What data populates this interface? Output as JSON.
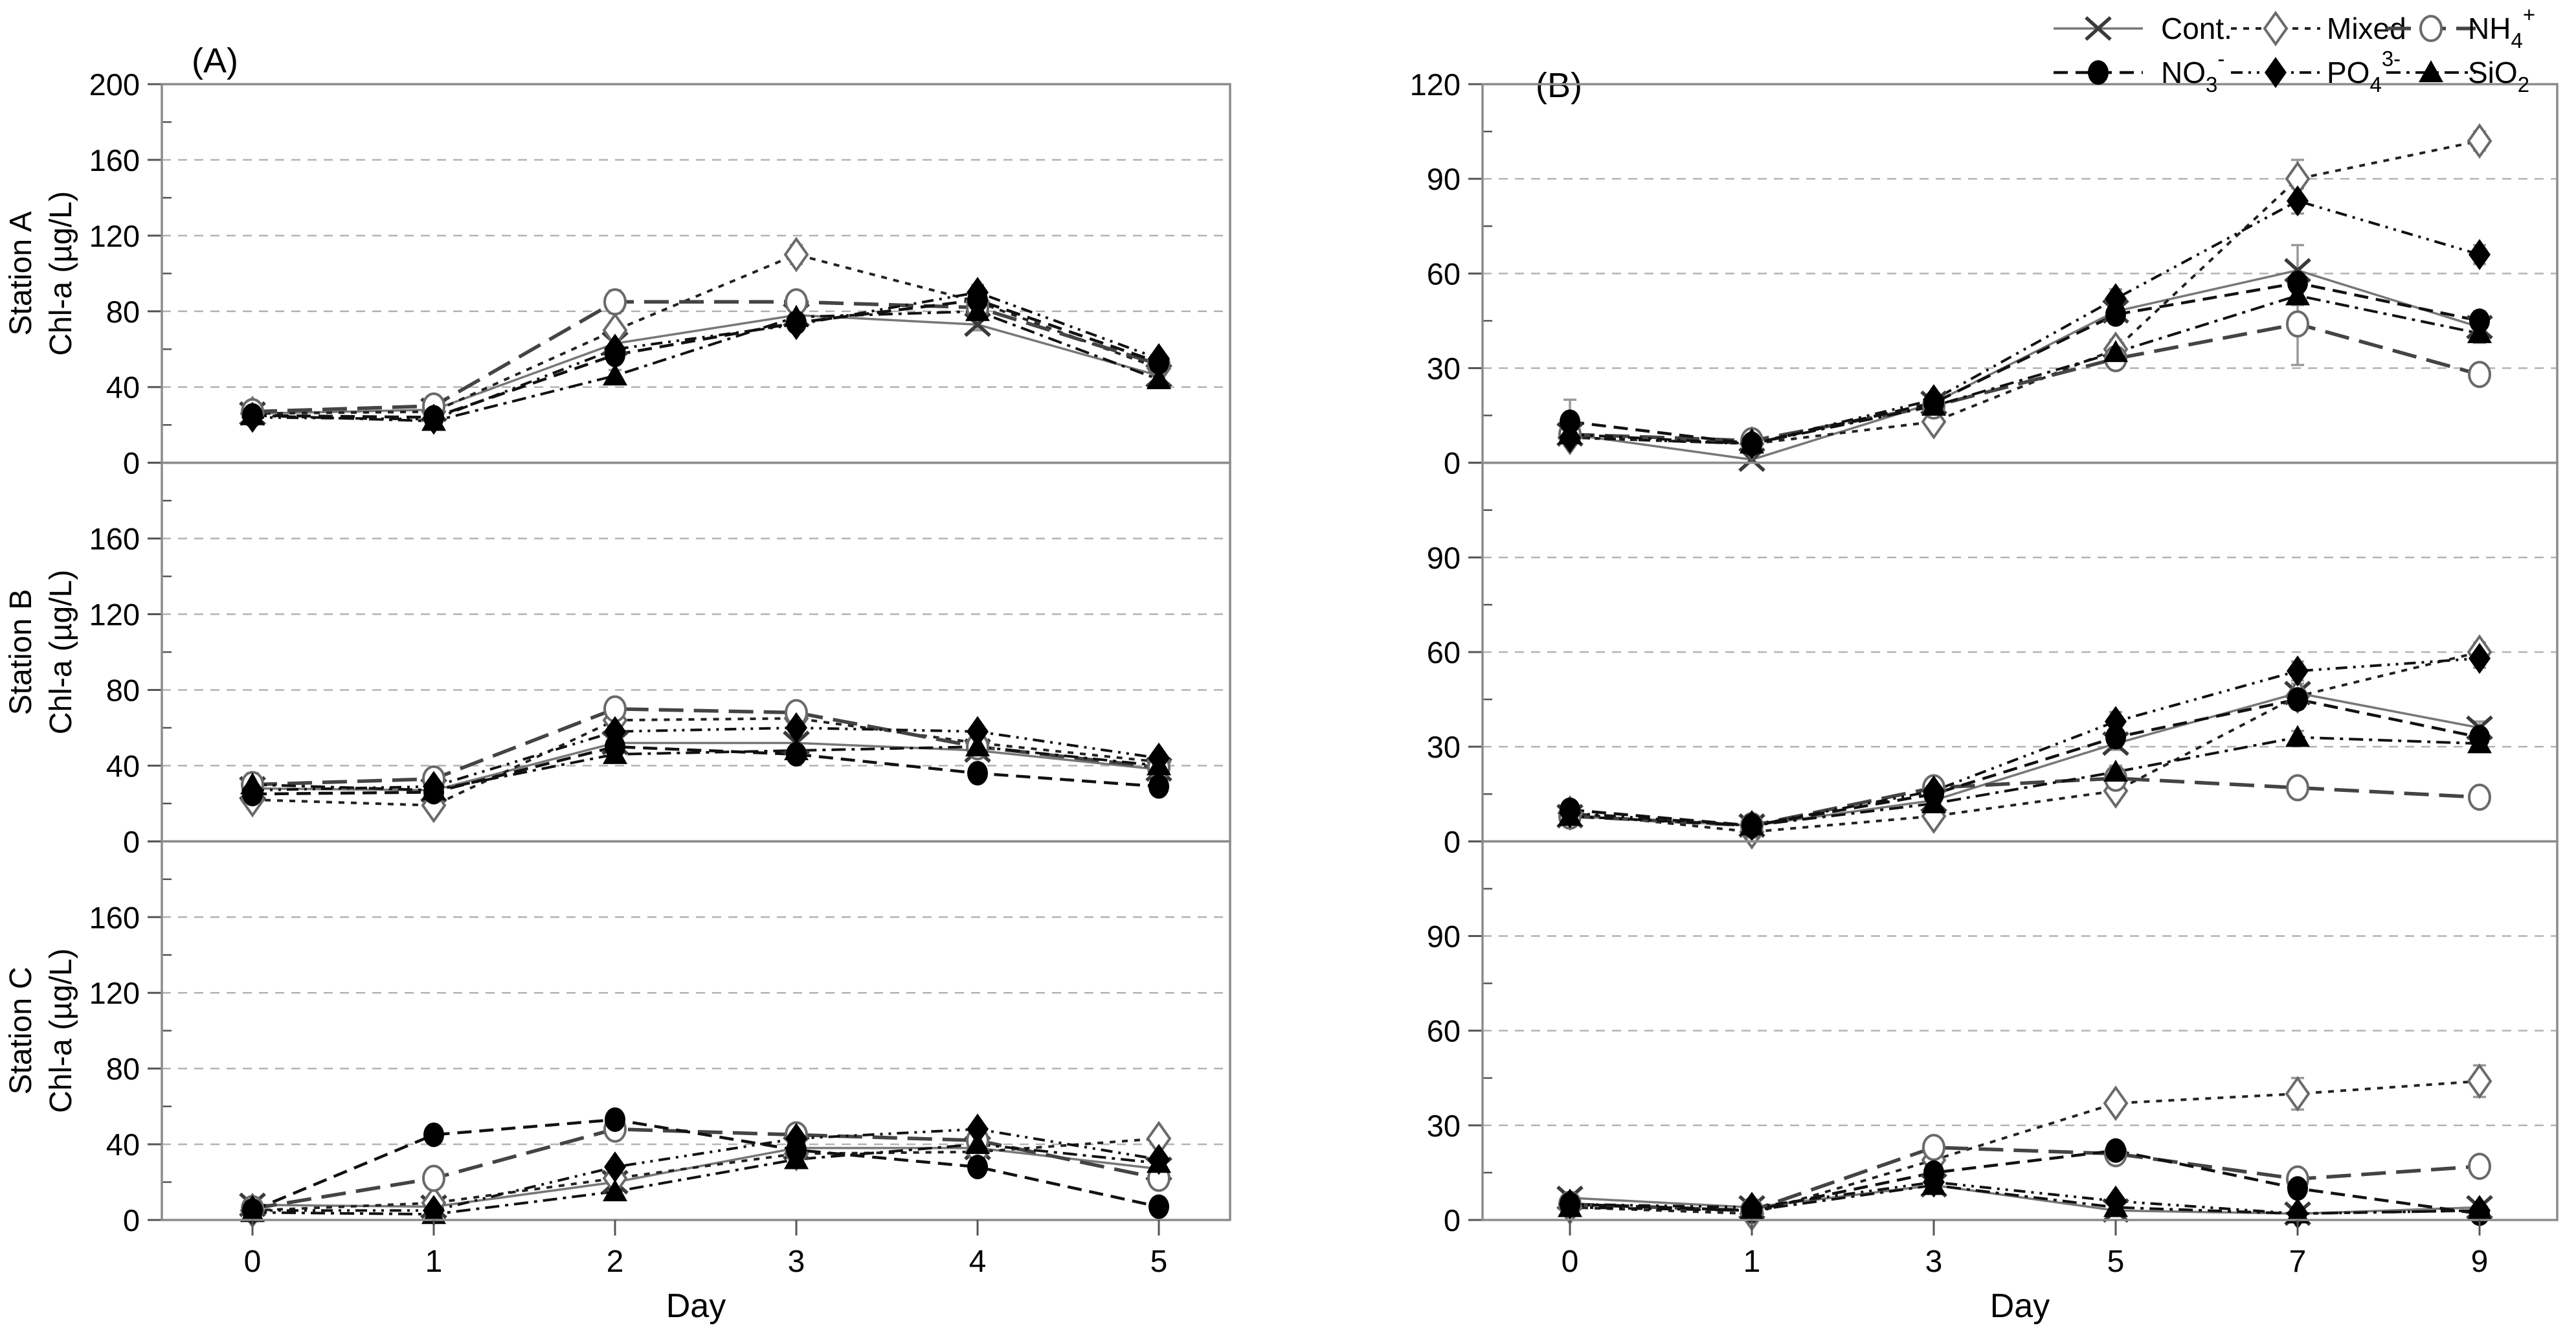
{
  "figure": {
    "background": "#ffffff"
  },
  "axes": {
    "err_color": "#999999",
    "grid_color": "#b3b3b3",
    "frame_color": "#8c8c8c",
    "tick_color": "#555555",
    "text_color": "#000000"
  },
  "series_styles": {
    "cont": {
      "name": "Cont.",
      "marker": "x",
      "line": "solid",
      "color": "#777777",
      "marker_color": "#3a3a3a"
    },
    "mixed": {
      "name": "Mixed",
      "marker": "diamond-open",
      "line": "dotted",
      "color": "#222222",
      "marker_color": "#6a6a6a"
    },
    "nh4": {
      "name": "NH4+",
      "marker": "circle-open",
      "line": "long-dash",
      "color": "#444444",
      "marker_color": "#6a6a6a"
    },
    "no3": {
      "name": "NO3-",
      "marker": "circle-filled",
      "line": "dash",
      "color": "#111111",
      "marker_color": "#000000"
    },
    "po4": {
      "name": "PO43-",
      "marker": "diamond-filled",
      "line": "dash-dot-dot",
      "color": "#111111",
      "marker_color": "#000000"
    },
    "sio2": {
      "name": "SiO2",
      "marker": "triangle-filled",
      "line": "dash-dot",
      "color": "#111111",
      "marker_color": "#000000"
    }
  },
  "legend": {
    "rows": [
      [
        {
          "key": "cont",
          "base": "Cont."
        },
        {
          "key": "mixed",
          "base": "Mixed"
        },
        {
          "key": "nh4",
          "base": "NH",
          "sub": "4",
          "sup": "+"
        }
      ],
      [
        {
          "key": "no3",
          "base": "NO",
          "sub": "3",
          "sup": "-"
        },
        {
          "key": "po4",
          "base": "PO",
          "sub": "4",
          "sup": "3-"
        },
        {
          "key": "sio2",
          "base": "SiO",
          "sub": "2"
        }
      ]
    ]
  },
  "chart_data": [
    {
      "panel": "A",
      "panel_label": "(A)",
      "type": "line",
      "xlabel": "Day",
      "x_tick_labels": [
        "0",
        "1",
        "2",
        "3",
        "4",
        "5"
      ],
      "ylim": [
        0,
        200
      ],
      "grid_values": [
        40,
        80,
        120,
        160
      ],
      "minor_step": 20,
      "ylabel_unit": "Chl-a (µg/L)",
      "subplots": [
        {
          "station": "Station A",
          "ytick_labels": [
            "200",
            "160",
            "120",
            "80",
            "40",
            "0"
          ],
          "series": [
            {
              "key": "cont",
              "values": [
                26,
                28,
                63,
                78,
                73,
                46
              ],
              "err": [
                2,
                2,
                3,
                4,
                3,
                4
              ]
            },
            {
              "key": "mixed",
              "values": [
                26,
                27,
                70,
                110,
                85,
                50
              ],
              "err": [
                2,
                2,
                3,
                5,
                4,
                3
              ]
            },
            {
              "key": "nh4",
              "values": [
                27,
                30,
                85,
                85,
                82,
                52
              ],
              "err": [
                2,
                2,
                6,
                4,
                4,
                3
              ]
            },
            {
              "key": "no3",
              "values": [
                25,
                24,
                57,
                74,
                86,
                53
              ],
              "err": [
                2,
                2,
                3,
                3,
                4,
                3
              ]
            },
            {
              "key": "po4",
              "values": [
                24,
                23,
                60,
                73,
                90,
                55
              ],
              "err": [
                2,
                2,
                3,
                3,
                4,
                3
              ]
            },
            {
              "key": "sio2",
              "values": [
                25,
                22,
                46,
                77,
                80,
                44
              ],
              "err": [
                2,
                2,
                3,
                3,
                4,
                3
              ]
            }
          ]
        },
        {
          "station": "Station B",
          "ytick_labels": [
            "160",
            "120",
            "80",
            "40",
            "0"
          ],
          "series": [
            {
              "key": "cont",
              "values": [
                28,
                27,
                52,
                52,
                48,
                38
              ],
              "err": [
                8,
                2,
                3,
                3,
                3,
                2
              ]
            },
            {
              "key": "mixed",
              "values": [
                22,
                19,
                64,
                65,
                52,
                42
              ],
              "err": [
                2,
                3,
                3,
                3,
                3,
                2
              ]
            },
            {
              "key": "nh4",
              "values": [
                30,
                33,
                70,
                68,
                50,
                39
              ],
              "err": [
                3,
                3,
                4,
                4,
                3,
                2
              ]
            },
            {
              "key": "no3",
              "values": [
                25,
                26,
                50,
                46,
                36,
                29
              ],
              "err": [
                2,
                2,
                3,
                3,
                3,
                2
              ]
            },
            {
              "key": "po4",
              "values": [
                27,
                29,
                58,
                60,
                58,
                44
              ],
              "err": [
                2,
                2,
                3,
                3,
                3,
                3
              ]
            },
            {
              "key": "sio2",
              "values": [
                30,
                27,
                46,
                48,
                50,
                40
              ],
              "err": [
                2,
                2,
                3,
                3,
                3,
                2
              ]
            }
          ]
        },
        {
          "station": "Station C",
          "ytick_labels": [
            "160",
            "120",
            "80",
            "40",
            "0"
          ],
          "series": [
            {
              "key": "cont",
              "values": [
                8,
                7,
                20,
                38,
                38,
                27
              ],
              "err": [
                2,
                1,
                2,
                3,
                3,
                2
              ]
            },
            {
              "key": "mixed",
              "values": [
                5,
                9,
                22,
                35,
                36,
                43
              ],
              "err": [
                1,
                2,
                4,
                3,
                3,
                3
              ]
            },
            {
              "key": "nh4",
              "values": [
                6,
                22,
                48,
                45,
                42,
                22
              ],
              "err": [
                1,
                2,
                3,
                3,
                3,
                2
              ]
            },
            {
              "key": "no3",
              "values": [
                5,
                45,
                53,
                37,
                28,
                7
              ],
              "err": [
                1,
                3,
                3,
                3,
                3,
                1
              ]
            },
            {
              "key": "po4",
              "values": [
                5,
                5,
                28,
                43,
                48,
                32
              ],
              "err": [
                1,
                1,
                3,
                3,
                3,
                2
              ]
            },
            {
              "key": "sio2",
              "values": [
                4,
                3,
                15,
                32,
                40,
                30
              ],
              "err": [
                1,
                1,
                3,
                3,
                3,
                2
              ]
            }
          ]
        }
      ]
    },
    {
      "panel": "B",
      "panel_label": "(B)",
      "type": "line",
      "xlabel": "Day",
      "x_tick_labels": [
        "0",
        "1",
        "3",
        "5",
        "7",
        "9"
      ],
      "ylim": [
        0,
        120
      ],
      "grid_values": [
        30,
        60,
        90
      ],
      "minor_step": 15,
      "ylabel_unit": "",
      "subplots": [
        {
          "station": "",
          "ytick_labels": [
            "120",
            "90",
            "60",
            "30",
            "0"
          ],
          "series": [
            {
              "key": "cont",
              "values": [
                9,
                1,
                19,
                48,
                61,
                43
              ],
              "err": [
                2,
                1,
                2,
                3,
                8,
                3
              ]
            },
            {
              "key": "mixed",
              "values": [
                8,
                6,
                13,
                36,
                90,
                102
              ],
              "err": [
                2,
                1,
                2,
                3,
                6,
                3
              ]
            },
            {
              "key": "nh4",
              "values": [
                9,
                7,
                18,
                33,
                44,
                28
              ],
              "err": [
                2,
                1,
                2,
                3,
                13,
                3
              ]
            },
            {
              "key": "no3",
              "values": [
                13,
                6,
                19,
                47,
                57,
                45
              ],
              "err": [
                7,
                1,
                2,
                3,
                3,
                3
              ]
            },
            {
              "key": "po4",
              "values": [
                8,
                6,
                20,
                52,
                83,
                66
              ],
              "err": [
                2,
                1,
                2,
                3,
                4,
                3
              ]
            },
            {
              "key": "sio2",
              "values": [
                9,
                6,
                18,
                35,
                53,
                41
              ],
              "err": [
                2,
                1,
                2,
                3,
                3,
                3
              ]
            }
          ]
        },
        {
          "station": "",
          "ytick_labels": [
            "90",
            "60",
            "30",
            "0"
          ],
          "series": [
            {
              "key": "cont",
              "values": [
                8,
                5,
                13,
                31,
                47,
                36
              ],
              "err": [
                1,
                1,
                2,
                2,
                3,
                2
              ]
            },
            {
              "key": "mixed",
              "values": [
                9,
                3,
                8,
                16,
                46,
                60
              ],
              "err": [
                1,
                1,
                1,
                2,
                3,
                3
              ]
            },
            {
              "key": "nh4",
              "values": [
                8,
                5,
                17,
                20,
                17,
                14
              ],
              "err": [
                1,
                1,
                2,
                2,
                2,
                2
              ]
            },
            {
              "key": "no3",
              "values": [
                10,
                5,
                15,
                33,
                45,
                33
              ],
              "err": [
                2,
                1,
                2,
                2,
                3,
                2
              ]
            },
            {
              "key": "po4",
              "values": [
                9,
                5,
                16,
                38,
                54,
                58
              ],
              "err": [
                1,
                1,
                2,
                3,
                3,
                3
              ]
            },
            {
              "key": "sio2",
              "values": [
                8,
                5,
                12,
                22,
                33,
                31
              ],
              "err": [
                1,
                1,
                2,
                2,
                2,
                2
              ]
            }
          ]
        },
        {
          "station": "",
          "ytick_labels": [
            "90",
            "60",
            "30",
            "0"
          ],
          "series": [
            {
              "key": "cont",
              "values": [
                7,
                4,
                11,
                3,
                2,
                4
              ],
              "err": [
                1,
                1,
                1,
                1,
                1,
                1
              ]
            },
            {
              "key": "mixed",
              "values": [
                4,
                2,
                19,
                37,
                40,
                44
              ],
              "err": [
                1,
                1,
                2,
                2,
                5,
                5
              ]
            },
            {
              "key": "nh4",
              "values": [
                5,
                3,
                23,
                21,
                13,
                17
              ],
              "err": [
                1,
                1,
                2,
                2,
                2,
                2
              ]
            },
            {
              "key": "no3",
              "values": [
                5,
                3,
                15,
                22,
                10,
                2
              ],
              "err": [
                1,
                1,
                2,
                2,
                2,
                1
              ]
            },
            {
              "key": "po4",
              "values": [
                5,
                4,
                12,
                6,
                2,
                3
              ],
              "err": [
                1,
                1,
                2,
                1,
                1,
                1
              ]
            },
            {
              "key": "sio2",
              "values": [
                4,
                3,
                11,
                4,
                2,
                3
              ],
              "err": [
                1,
                1,
                1,
                1,
                1,
                1
              ]
            }
          ]
        }
      ]
    }
  ]
}
